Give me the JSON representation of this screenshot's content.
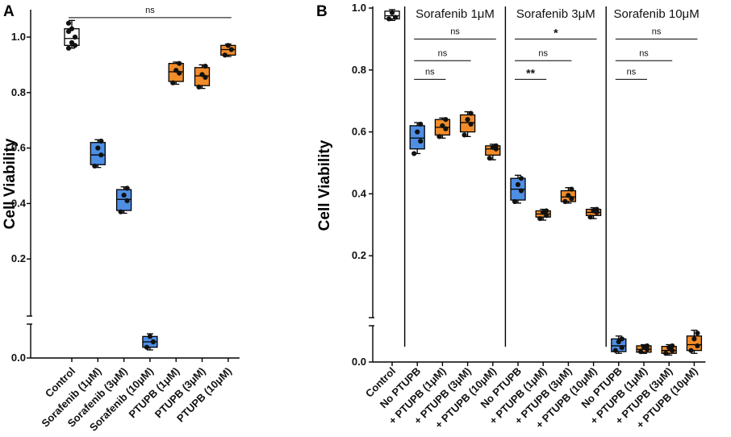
{
  "chart_data": [
    {
      "panel_label": "A",
      "type": "box",
      "ylabel": "Cell Viability",
      "ylim": [
        0,
        1.05
      ],
      "yticks": [
        "0.0",
        "0.2",
        "0.4",
        "0.6",
        "0.8",
        "1.0"
      ],
      "axis_break": true,
      "colors": {
        "white": "#ffffff",
        "blue": "#4e8ee3",
        "orange": "#f18c2a"
      },
      "groups": [
        {
          "label": "Control",
          "color": "white",
          "q1": 0.97,
          "median": 0.995,
          "q3": 1.03,
          "min": 0.96,
          "max": 1.06,
          "points": [
            0.96,
            0.97,
            0.98,
            1.0,
            1.02,
            1.03,
            1.05
          ]
        },
        {
          "label": "Sorafenib (1μM)",
          "color": "blue",
          "q1": 0.54,
          "median": 0.575,
          "q3": 0.62,
          "min": 0.53,
          "max": 0.63,
          "points": [
            0.535,
            0.575,
            0.6,
            0.625
          ]
        },
        {
          "label": "Sorafenib (3μM)",
          "color": "blue",
          "q1": 0.375,
          "median": 0.415,
          "q3": 0.45,
          "min": 0.365,
          "max": 0.46,
          "points": [
            0.37,
            0.41,
            0.43,
            0.455
          ]
        },
        {
          "label": "Sorafenib (10μM)",
          "color": "blue",
          "q1": 0.02,
          "median": 0.03,
          "q3": 0.04,
          "min": 0.015,
          "max": 0.045,
          "points": [
            0.02,
            0.03,
            0.04
          ]
        },
        {
          "label": "PTUPB (1μM)",
          "color": "orange",
          "q1": 0.84,
          "median": 0.875,
          "q3": 0.905,
          "min": 0.83,
          "max": 0.91,
          "points": [
            0.835,
            0.87,
            0.88,
            0.905
          ]
        },
        {
          "label": "PTUPB (3μM)",
          "color": "orange",
          "q1": 0.825,
          "median": 0.86,
          "q3": 0.89,
          "min": 0.815,
          "max": 0.9,
          "points": [
            0.82,
            0.855,
            0.865,
            0.895
          ]
        },
        {
          "label": "PTUPB (10μM)",
          "color": "orange",
          "q1": 0.935,
          "median": 0.955,
          "q3": 0.97,
          "min": 0.93,
          "max": 0.975,
          "points": [
            0.935,
            0.955,
            0.97
          ]
        }
      ],
      "annotations": [
        {
          "text": "ns",
          "from": 0,
          "to": 6,
          "y": 1.07
        }
      ]
    },
    {
      "panel_label": "B",
      "type": "box",
      "ylabel": "Cell Viability",
      "ylim": [
        0,
        1.0
      ],
      "yticks": [
        "0.0",
        "0.2",
        "0.4",
        "0.6",
        "0.8",
        "1.0"
      ],
      "axis_break": true,
      "colors": {
        "white": "#ffffff",
        "blue": "#4e8ee3",
        "orange": "#f18c2a"
      },
      "group_titles": [
        {
          "text": "Sorafenib 1μM",
          "from": 1,
          "to": 4
        },
        {
          "text": "Sorafenib 3μM",
          "from": 5,
          "to": 8
        },
        {
          "text": "Sorafenib 10μM",
          "from": 9,
          "to": 12
        }
      ],
      "groups": [
        {
          "label": "Control",
          "color": "white",
          "q1": 0.965,
          "median": 0.975,
          "q3": 0.99,
          "min": 0.96,
          "max": 0.995,
          "points": [
            0.965,
            0.97,
            0.985
          ]
        },
        {
          "label": "No PTUPB",
          "color": "blue",
          "q1": 0.545,
          "median": 0.58,
          "q3": 0.62,
          "min": 0.53,
          "max": 0.63,
          "points": [
            0.53,
            0.57,
            0.6,
            0.625
          ]
        },
        {
          "label": "+ PTUPB (1μM)",
          "color": "orange",
          "q1": 0.59,
          "median": 0.615,
          "q3": 0.64,
          "min": 0.58,
          "max": 0.645,
          "points": [
            0.585,
            0.61,
            0.62,
            0.64
          ]
        },
        {
          "label": "+ PTUPB (3μM)",
          "color": "orange",
          "q1": 0.6,
          "median": 0.63,
          "q3": 0.655,
          "min": 0.585,
          "max": 0.665,
          "points": [
            0.59,
            0.625,
            0.64,
            0.66
          ]
        },
        {
          "label": "+ PTUPB (10μM)",
          "color": "orange",
          "q1": 0.525,
          "median": 0.545,
          "q3": 0.555,
          "min": 0.51,
          "max": 0.56,
          "points": [
            0.515,
            0.545,
            0.55,
            0.555
          ]
        },
        {
          "label": "No PTUPB",
          "color": "blue",
          "q1": 0.38,
          "median": 0.415,
          "q3": 0.45,
          "min": 0.37,
          "max": 0.46,
          "points": [
            0.375,
            0.41,
            0.43,
            0.45
          ]
        },
        {
          "label": "+ PTUPB (1μM)",
          "color": "orange",
          "q1": 0.325,
          "median": 0.335,
          "q3": 0.345,
          "min": 0.315,
          "max": 0.35,
          "points": [
            0.32,
            0.33,
            0.34,
            0.345
          ]
        },
        {
          "label": "+ PTUPB (3μM)",
          "color": "orange",
          "q1": 0.375,
          "median": 0.39,
          "q3": 0.41,
          "min": 0.37,
          "max": 0.42,
          "points": [
            0.375,
            0.385,
            0.395,
            0.415
          ]
        },
        {
          "label": "+ PTUPB (10μM)",
          "color": "orange",
          "q1": 0.33,
          "median": 0.34,
          "q3": 0.35,
          "min": 0.32,
          "max": 0.355,
          "points": [
            0.325,
            0.34,
            0.345,
            0.35
          ]
        },
        {
          "label": "No PTUPB",
          "color": "blue",
          "q1": 0.018,
          "median": 0.028,
          "q3": 0.04,
          "min": 0.015,
          "max": 0.045,
          "points": [
            0.02,
            0.025,
            0.035,
            0.04
          ]
        },
        {
          "label": "+ PTUPB (1μM)",
          "color": "orange",
          "q1": 0.017,
          "median": 0.022,
          "q3": 0.028,
          "min": 0.015,
          "max": 0.03,
          "points": [
            0.018,
            0.022,
            0.026,
            0.028
          ]
        },
        {
          "label": "+ PTUPB (3μM)",
          "color": "orange",
          "q1": 0.015,
          "median": 0.02,
          "q3": 0.027,
          "min": 0.012,
          "max": 0.03,
          "points": [
            0.015,
            0.02,
            0.025,
            0.028
          ]
        },
        {
          "label": "+ PTUPB (10μM)",
          "color": "orange",
          "q1": 0.02,
          "median": 0.03,
          "q3": 0.045,
          "min": 0.015,
          "max": 0.055,
          "points": [
            0.02,
            0.028,
            0.04,
            0.05
          ]
        }
      ],
      "annotations": [
        {
          "text": "ns",
          "from": 1,
          "to": 2,
          "y": 0.77
        },
        {
          "text": "ns",
          "from": 1,
          "to": 3,
          "y": 0.83
        },
        {
          "text": "ns",
          "from": 1,
          "to": 4,
          "y": 0.9
        },
        {
          "text": "**",
          "from": 5,
          "to": 6,
          "y": 0.77
        },
        {
          "text": "ns",
          "from": 5,
          "to": 7,
          "y": 0.83
        },
        {
          "text": "*",
          "from": 5,
          "to": 8,
          "y": 0.9
        },
        {
          "text": "ns",
          "from": 9,
          "to": 10,
          "y": 0.77
        },
        {
          "text": "ns",
          "from": 9,
          "to": 11,
          "y": 0.83
        },
        {
          "text": "ns",
          "from": 9,
          "to": 12,
          "y": 0.9
        }
      ]
    }
  ]
}
